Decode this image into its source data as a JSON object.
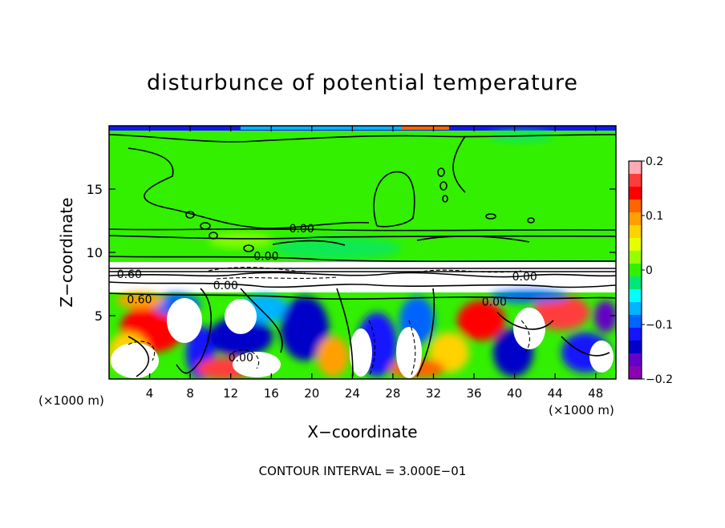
{
  "chart_data": {
    "type": "heatmap",
    "title": "disturbunce of potential temperature",
    "xlabel": "X−coordinate",
    "ylabel": "Z−coordinate",
    "x_unit_left": "(×1000 m)",
    "x_unit_right": "(×1000 m)",
    "footer": "CONTOUR INTERVAL = 3.000E−01",
    "xlim": [
      0,
      50
    ],
    "ylim": [
      0,
      20
    ],
    "x_ticks": [
      4,
      8,
      12,
      16,
      20,
      24,
      28,
      32,
      36,
      40,
      44,
      48
    ],
    "x_tick_labels": [
      "4",
      "8",
      "12",
      "16",
      "20",
      "24",
      "28",
      "32",
      "36",
      "40",
      "44",
      "48"
    ],
    "y_ticks": [
      5,
      10,
      15
    ],
    "y_tick_labels": [
      "5",
      "10",
      "15"
    ],
    "colorbar": {
      "range": [
        -0.2,
        0.2
      ],
      "ticks": [
        0.2,
        0.1,
        0,
        -0.1,
        -0.2
      ],
      "tick_labels": [
        "0.2",
        "0.1",
        "0",
        "−0.1",
        "−0.2"
      ],
      "colors": [
        "#FFAAB4",
        "#FF3C3C",
        "#FF0000",
        "#FF6400",
        "#FFA000",
        "#FFD200",
        "#E6FF00",
        "#96FF00",
        "#32F000",
        "#00E678",
        "#00FFFF",
        "#00B4FF",
        "#0064FF",
        "#1414FF",
        "#0000C8",
        "#6400C8",
        "#8C00B4"
      ]
    },
    "contour_labels": [
      {
        "text": "0.00",
        "x": 19,
        "y": 11.9
      },
      {
        "text": "0.00",
        "x": 15.5,
        "y": 9.7
      },
      {
        "text": "0.60",
        "x": 2,
        "y": 8.3
      },
      {
        "text": "0.60",
        "x": 3,
        "y": 6.3
      },
      {
        "text": "0.00",
        "x": 11.5,
        "y": 7.4
      },
      {
        "text": "0.00",
        "x": 13,
        "y": 1.7
      },
      {
        "text": "0.00",
        "x": 41,
        "y": 8.1
      },
      {
        "text": "0.00",
        "x": 38,
        "y": 6.1
      }
    ]
  }
}
